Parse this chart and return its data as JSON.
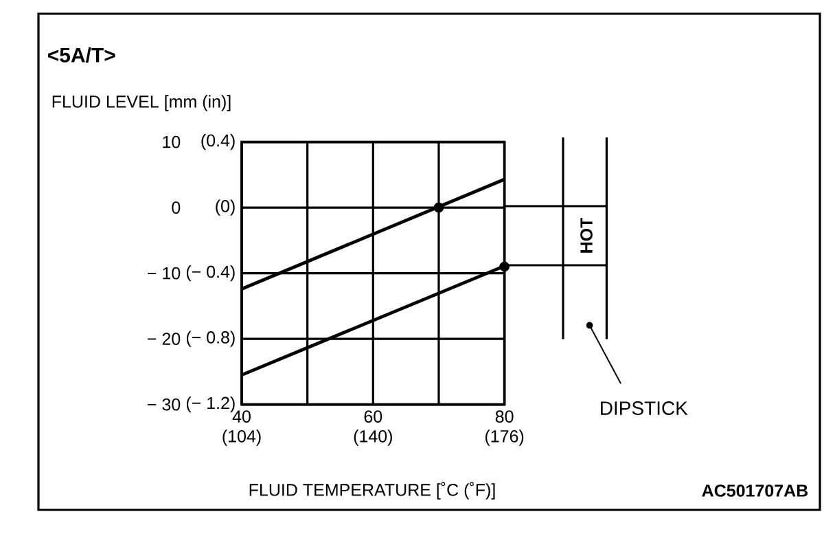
{
  "chart_data": {
    "type": "line",
    "title": "<5A/T>",
    "ylabel": "FLUID LEVEL [mm (in)]",
    "xlabel": "FLUID TEMPERATURE [˚C (˚F)]",
    "xlim": [
      40,
      80
    ],
    "ylim": [
      -30,
      10
    ],
    "xticks": [
      40,
      {
        "value": 50,
        "label": null
      },
      60,
      {
        "value": 70,
        "label": null
      },
      80
    ],
    "yticks": [
      {
        "value": -30,
        "label": "− 30"
      },
      {
        "value": -20,
        "label": "− 20"
      },
      {
        "value": -10,
        "label": "− 10"
      },
      0,
      10
    ],
    "x2lim": [
      104,
      176
    ],
    "x2ticks": [
      {
        "value": 104,
        "label": "(104)"
      },
      {
        "value": 140,
        "label": "(140)"
      },
      {
        "value": 176,
        "label": "(176)"
      }
    ],
    "y2lim": [
      -1.2,
      0.4
    ],
    "y2ticks": [
      {
        "value": -1.2,
        "label": "(− 1.2)"
      },
      {
        "value": -0.8,
        "label": "(− 0.8)"
      },
      {
        "value": -0.4,
        "label": "(− 0.4)"
      },
      {
        "value": 0,
        "label": "(0)"
      },
      {
        "value": 0.4,
        "label": "(0.4)"
      }
    ],
    "grid": true,
    "marker": "none",
    "line_style": "solid",
    "series": [
      {
        "color": "#000000",
        "x": [
          40,
          80
        ],
        "values": [
          -12.4,
          4.3
        ]
      },
      {
        "color": "#000000",
        "x": [
          40,
          80
        ],
        "values": [
          -25.5,
          -8.9
        ]
      },
      {
        "type": "scatter",
        "marker": "circle",
        "color": "#000000",
        "x": [
          70,
          80
        ],
        "values": [
          0,
          -9
        ]
      }
    ],
    "annotations": [
      "HOT",
      "DIPSTICK",
      "AC501707AB"
    ]
  }
}
